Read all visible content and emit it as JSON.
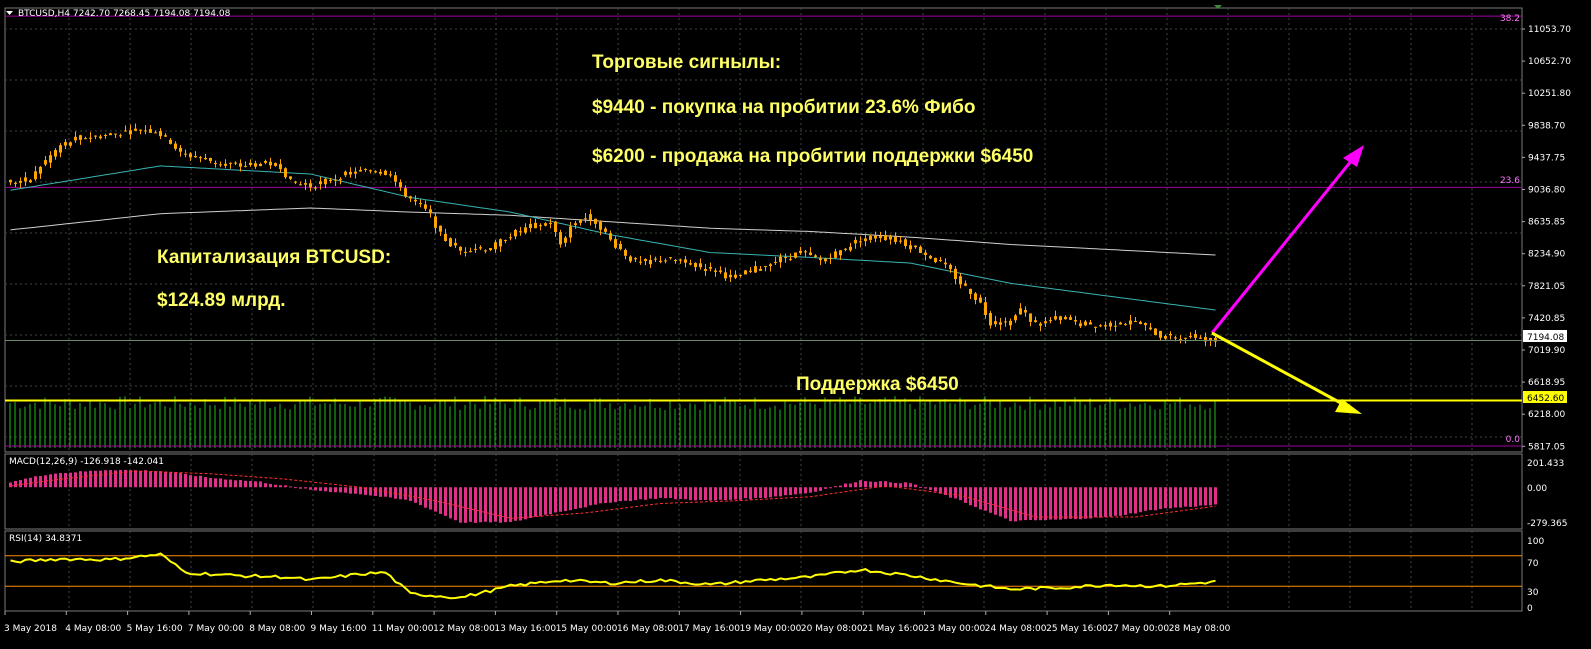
{
  "symbol_header": "BTCUSD,H4  7242.70 7268.45 7194.08 7194.08",
  "main_price_axis": [
    "11053.70",
    "10652.70",
    "10251.80",
    "9838.70",
    "9437.75",
    "9036.80",
    "8635.85",
    "8234.90",
    "7821.05",
    "7420.85",
    "7019.90",
    "6618.95",
    "6218.00",
    "5817.05"
  ],
  "current_price": "7194.08",
  "support_price": "6452.60",
  "fib_labels": {
    "f382": "38.2",
    "f236": "23.6",
    "f0": "0.0"
  },
  "annotations": {
    "signals_title": "Торговые сигнылы:",
    "buy_signal": "$9440 - покупка на пробитии 23.6% Фибо",
    "sell_signal": "$6200 - продажа на пробитии поддержки $6450",
    "cap_title": "Капитализация BTCUSD:",
    "cap_value": "$124.89 млрд.",
    "support_label": "Поддержка $6450"
  },
  "macd": {
    "label": "MACD(12,26,9) -126.918 -142.041",
    "axis": [
      "201.433",
      "0.00",
      "-279.365"
    ]
  },
  "rsi": {
    "label": "RSI(14) 34.8371",
    "axis": [
      "100",
      "70",
      "30",
      "0"
    ]
  },
  "x_axis": [
    "3 May 2018",
    "4 May 08:00",
    "5 May 16:00",
    "7 May 00:00",
    "8 May 08:00",
    "9 May 16:00",
    "11 May 00:00",
    "12 May 08:00",
    "13 May 16:00",
    "15 May 00:00",
    "16 May 08:00",
    "17 May 16:00",
    "19 May 00:00",
    "20 May 08:00",
    "21 May 16:00",
    "23 May 00:00",
    "24 May 08:00",
    "25 May 16:00",
    "27 May 00:00",
    "28 May 08:00"
  ],
  "colors": {
    "background": "#000000",
    "grid": "#3a4a3a",
    "candle": "#ffa500",
    "fib": "#a000a0",
    "support": "#ffff00",
    "ma_fast": "#39b3b3",
    "ma_slow": "#d0d0d0",
    "volume": "#22bb22",
    "macd_hist": "#e0308a",
    "macd_signal": "#ff3030",
    "rsi_line": "#ffff00",
    "rsi_level": "#ff8c00",
    "buy_arrow": "#ff00ff",
    "sell_arrow": "#ffff00",
    "annotation": "#ffff66"
  },
  "chart_data": {
    "type": "candlestick",
    "series_anchor_closes": [
      [
        0,
        9150
      ],
      [
        4,
        9180
      ],
      [
        6,
        9350
      ],
      [
        10,
        9600
      ],
      [
        14,
        9700
      ],
      [
        18,
        9720
      ],
      [
        22,
        9760
      ],
      [
        26,
        9800
      ],
      [
        29,
        9780
      ],
      [
        32,
        9650
      ],
      [
        34,
        9500
      ],
      [
        38,
        9450
      ],
      [
        42,
        9380
      ],
      [
        46,
        9350
      ],
      [
        50,
        9380
      ],
      [
        54,
        9350
      ],
      [
        56,
        9150
      ],
      [
        60,
        9100
      ],
      [
        64,
        9180
      ],
      [
        68,
        9260
      ],
      [
        72,
        9300
      ],
      [
        76,
        9260
      ],
      [
        78,
        9050
      ],
      [
        80,
        8950
      ],
      [
        82,
        8850
      ],
      [
        84,
        8750
      ],
      [
        86,
        8500
      ],
      [
        88,
        8380
      ],
      [
        90,
        8300
      ],
      [
        92,
        8330
      ],
      [
        96,
        8330
      ],
      [
        100,
        8500
      ],
      [
        104,
        8600
      ],
      [
        108,
        8650
      ],
      [
        110,
        8380
      ],
      [
        112,
        8600
      ],
      [
        114,
        8700
      ],
      [
        116,
        8720
      ],
      [
        118,
        8600
      ],
      [
        120,
        8430
      ],
      [
        122,
        8320
      ],
      [
        124,
        8200
      ],
      [
        126,
        8150
      ],
      [
        130,
        8200
      ],
      [
        134,
        8180
      ],
      [
        138,
        8100
      ],
      [
        142,
        8050
      ],
      [
        144,
        7950
      ],
      [
        148,
        8050
      ],
      [
        152,
        8150
      ],
      [
        154,
        8200
      ],
      [
        158,
        8280
      ],
      [
        162,
        8180
      ],
      [
        166,
        8300
      ],
      [
        170,
        8450
      ],
      [
        174,
        8480
      ],
      [
        178,
        8420
      ],
      [
        182,
        8300
      ],
      [
        186,
        8150
      ],
      [
        188,
        8050
      ],
      [
        190,
        7900
      ],
      [
        192,
        7800
      ],
      [
        194,
        7650
      ],
      [
        196,
        7420
      ],
      [
        200,
        7420
      ],
      [
        202,
        7580
      ],
      [
        204,
        7450
      ],
      [
        206,
        7400
      ],
      [
        210,
        7480
      ],
      [
        214,
        7400
      ],
      [
        218,
        7380
      ],
      [
        222,
        7420
      ],
      [
        226,
        7400
      ],
      [
        230,
        7250
      ],
      [
        234,
        7230
      ],
      [
        238,
        7240
      ],
      [
        240,
        7200
      ],
      [
        241,
        7194
      ]
    ],
    "y_range": [
      5817,
      11300
    ],
    "ma_fast_anchors": [
      [
        0,
        9050
      ],
      [
        30,
        9350
      ],
      [
        60,
        9250
      ],
      [
        80,
        8960
      ],
      [
        100,
        8780
      ],
      [
        120,
        8500
      ],
      [
        140,
        8280
      ],
      [
        160,
        8220
      ],
      [
        180,
        8150
      ],
      [
        200,
        7900
      ],
      [
        241,
        7570
      ]
    ],
    "ma_slow_anchors": [
      [
        0,
        8560
      ],
      [
        30,
        8760
      ],
      [
        60,
        8830
      ],
      [
        80,
        8780
      ],
      [
        100,
        8740
      ],
      [
        120,
        8660
      ],
      [
        140,
        8580
      ],
      [
        160,
        8540
      ],
      [
        180,
        8470
      ],
      [
        200,
        8380
      ],
      [
        241,
        8250
      ]
    ],
    "fib_levels": [
      {
        "label": "38.2",
        "y": 11200
      },
      {
        "label": "23.6",
        "y": 9085
      },
      {
        "label": "0.0",
        "y": 5817
      }
    ],
    "support_level": 6452.6,
    "current_price": 7194.08,
    "macd_range": [
      -279.365,
      201.433
    ],
    "macd_anchors": [
      [
        0,
        40
      ],
      [
        8,
        100
      ],
      [
        20,
        130
      ],
      [
        30,
        120
      ],
      [
        40,
        70
      ],
      [
        50,
        40
      ],
      [
        60,
        -20
      ],
      [
        70,
        -50
      ],
      [
        80,
        -100
      ],
      [
        90,
        -260
      ],
      [
        100,
        -260
      ],
      [
        110,
        -180
      ],
      [
        120,
        -110
      ],
      [
        130,
        -80
      ],
      [
        140,
        -100
      ],
      [
        150,
        -80
      ],
      [
        160,
        -40
      ],
      [
        170,
        50
      ],
      [
        180,
        30
      ],
      [
        190,
        -100
      ],
      [
        200,
        -250
      ],
      [
        210,
        -240
      ],
      [
        220,
        -220
      ],
      [
        230,
        -160
      ],
      [
        241,
        -130
      ]
    ],
    "macd_signal_anchors": [
      [
        0,
        10
      ],
      [
        10,
        60
      ],
      [
        25,
        120
      ],
      [
        40,
        100
      ],
      [
        55,
        60
      ],
      [
        70,
        0
      ],
      [
        85,
        -100
      ],
      [
        100,
        -230
      ],
      [
        115,
        -190
      ],
      [
        130,
        -120
      ],
      [
        145,
        -100
      ],
      [
        160,
        -70
      ],
      [
        175,
        10
      ],
      [
        190,
        -60
      ],
      [
        205,
        -220
      ],
      [
        225,
        -220
      ],
      [
        241,
        -140
      ]
    ],
    "rsi_anchors": [
      [
        0,
        62
      ],
      [
        10,
        66
      ],
      [
        20,
        65
      ],
      [
        30,
        72
      ],
      [
        35,
        48
      ],
      [
        45,
        44
      ],
      [
        55,
        42
      ],
      [
        60,
        38
      ],
      [
        70,
        46
      ],
      [
        75,
        48
      ],
      [
        80,
        20
      ],
      [
        90,
        15
      ],
      [
        100,
        30
      ],
      [
        110,
        38
      ],
      [
        120,
        34
      ],
      [
        130,
        38
      ],
      [
        140,
        32
      ],
      [
        150,
        38
      ],
      [
        160,
        42
      ],
      [
        170,
        52
      ],
      [
        180,
        44
      ],
      [
        190,
        34
      ],
      [
        200,
        26
      ],
      [
        210,
        28
      ],
      [
        220,
        32
      ],
      [
        230,
        30
      ],
      [
        241,
        36
      ]
    ],
    "rsi_levels": [
      70,
      30
    ]
  }
}
